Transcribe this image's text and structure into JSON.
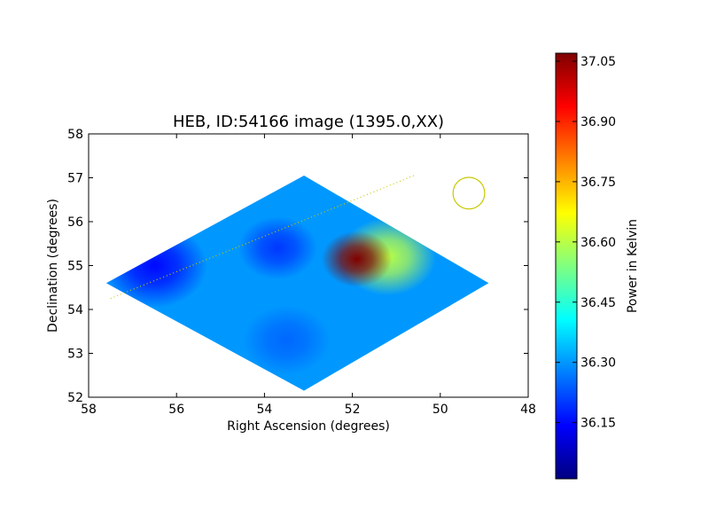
{
  "chart_data": {
    "type": "heatmap",
    "title": "HEB, ID:54166 image (1395.0,XX)",
    "xlabel": "Right Ascension (degrees)",
    "ylabel": "Declination (degrees)",
    "xlim": [
      58,
      48
    ],
    "ylim": [
      52,
      58
    ],
    "x_ticks": [
      "58",
      "56",
      "54",
      "52",
      "50",
      "48"
    ],
    "y_ticks": [
      "52",
      "53",
      "54",
      "55",
      "56",
      "57",
      "58"
    ],
    "x_tick_values": [
      58,
      56,
      54,
      52,
      50,
      48
    ],
    "y_tick_values": [
      52,
      53,
      54,
      55,
      56,
      57,
      58
    ],
    "colorbar": {
      "label": "Power in Kelvin",
      "min": 36.01,
      "max": 37.07,
      "ticks": [
        "36.15",
        "36.30",
        "36.45",
        "36.60",
        "36.75",
        "36.90",
        "37.05"
      ],
      "tick_values": [
        36.15,
        36.3,
        36.45,
        36.6,
        36.75,
        36.9,
        37.05
      ],
      "colormap": "jet"
    },
    "footprint": [
      [
        57.6,
        54.6
      ],
      [
        53.1,
        57.05
      ],
      [
        48.9,
        54.6
      ],
      [
        53.1,
        52.15
      ]
    ],
    "features": [
      {
        "ra": 51.9,
        "dec": 55.15,
        "value": 37.07,
        "radius": 0.8
      },
      {
        "ra": 51.2,
        "dec": 55.2,
        "value": 36.6,
        "radius": 1.1
      },
      {
        "ra": 56.5,
        "dec": 55.0,
        "value": 36.15,
        "radius": 1.2
      },
      {
        "ra": 53.7,
        "dec": 55.4,
        "value": 36.2,
        "radius": 0.9
      },
      {
        "ra": 53.5,
        "dec": 53.3,
        "value": 36.25,
        "radius": 1.0
      },
      {
        "ra": 50.0,
        "dec": 54.3,
        "value": 36.3,
        "radius": 1.0
      }
    ],
    "background_level": 36.3,
    "beam_circle": {
      "ra": 49.35,
      "dec": 56.65,
      "radius": 0.36,
      "color": "#c8c800"
    },
    "dotted_line": {
      "from": [
        57.5,
        54.25
      ],
      "to": [
        50.6,
        57.05
      ],
      "color": "#c8c800"
    }
  }
}
